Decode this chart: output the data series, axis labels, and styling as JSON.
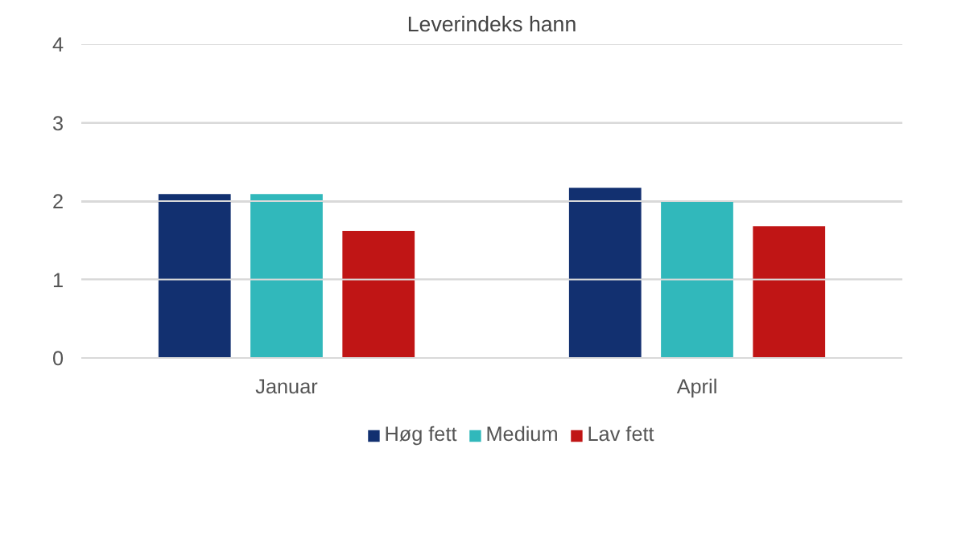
{
  "chart_data": {
    "type": "bar",
    "title": "Leverindeks hann",
    "categories": [
      "Januar",
      "April"
    ],
    "series": [
      {
        "name": "Høg fett",
        "color": "#123070",
        "values": [
          2.09,
          2.17
        ]
      },
      {
        "name": "Medium",
        "color": "#31b8bb",
        "values": [
          2.09,
          1.99
        ]
      },
      {
        "name": "Lav fett",
        "color": "#c01515",
        "values": [
          1.62,
          1.68
        ]
      }
    ],
    "ylim": [
      0,
      4
    ],
    "yticks": [
      0,
      1,
      2,
      3,
      4
    ],
    "grid": "y",
    "legend": "bottom"
  }
}
